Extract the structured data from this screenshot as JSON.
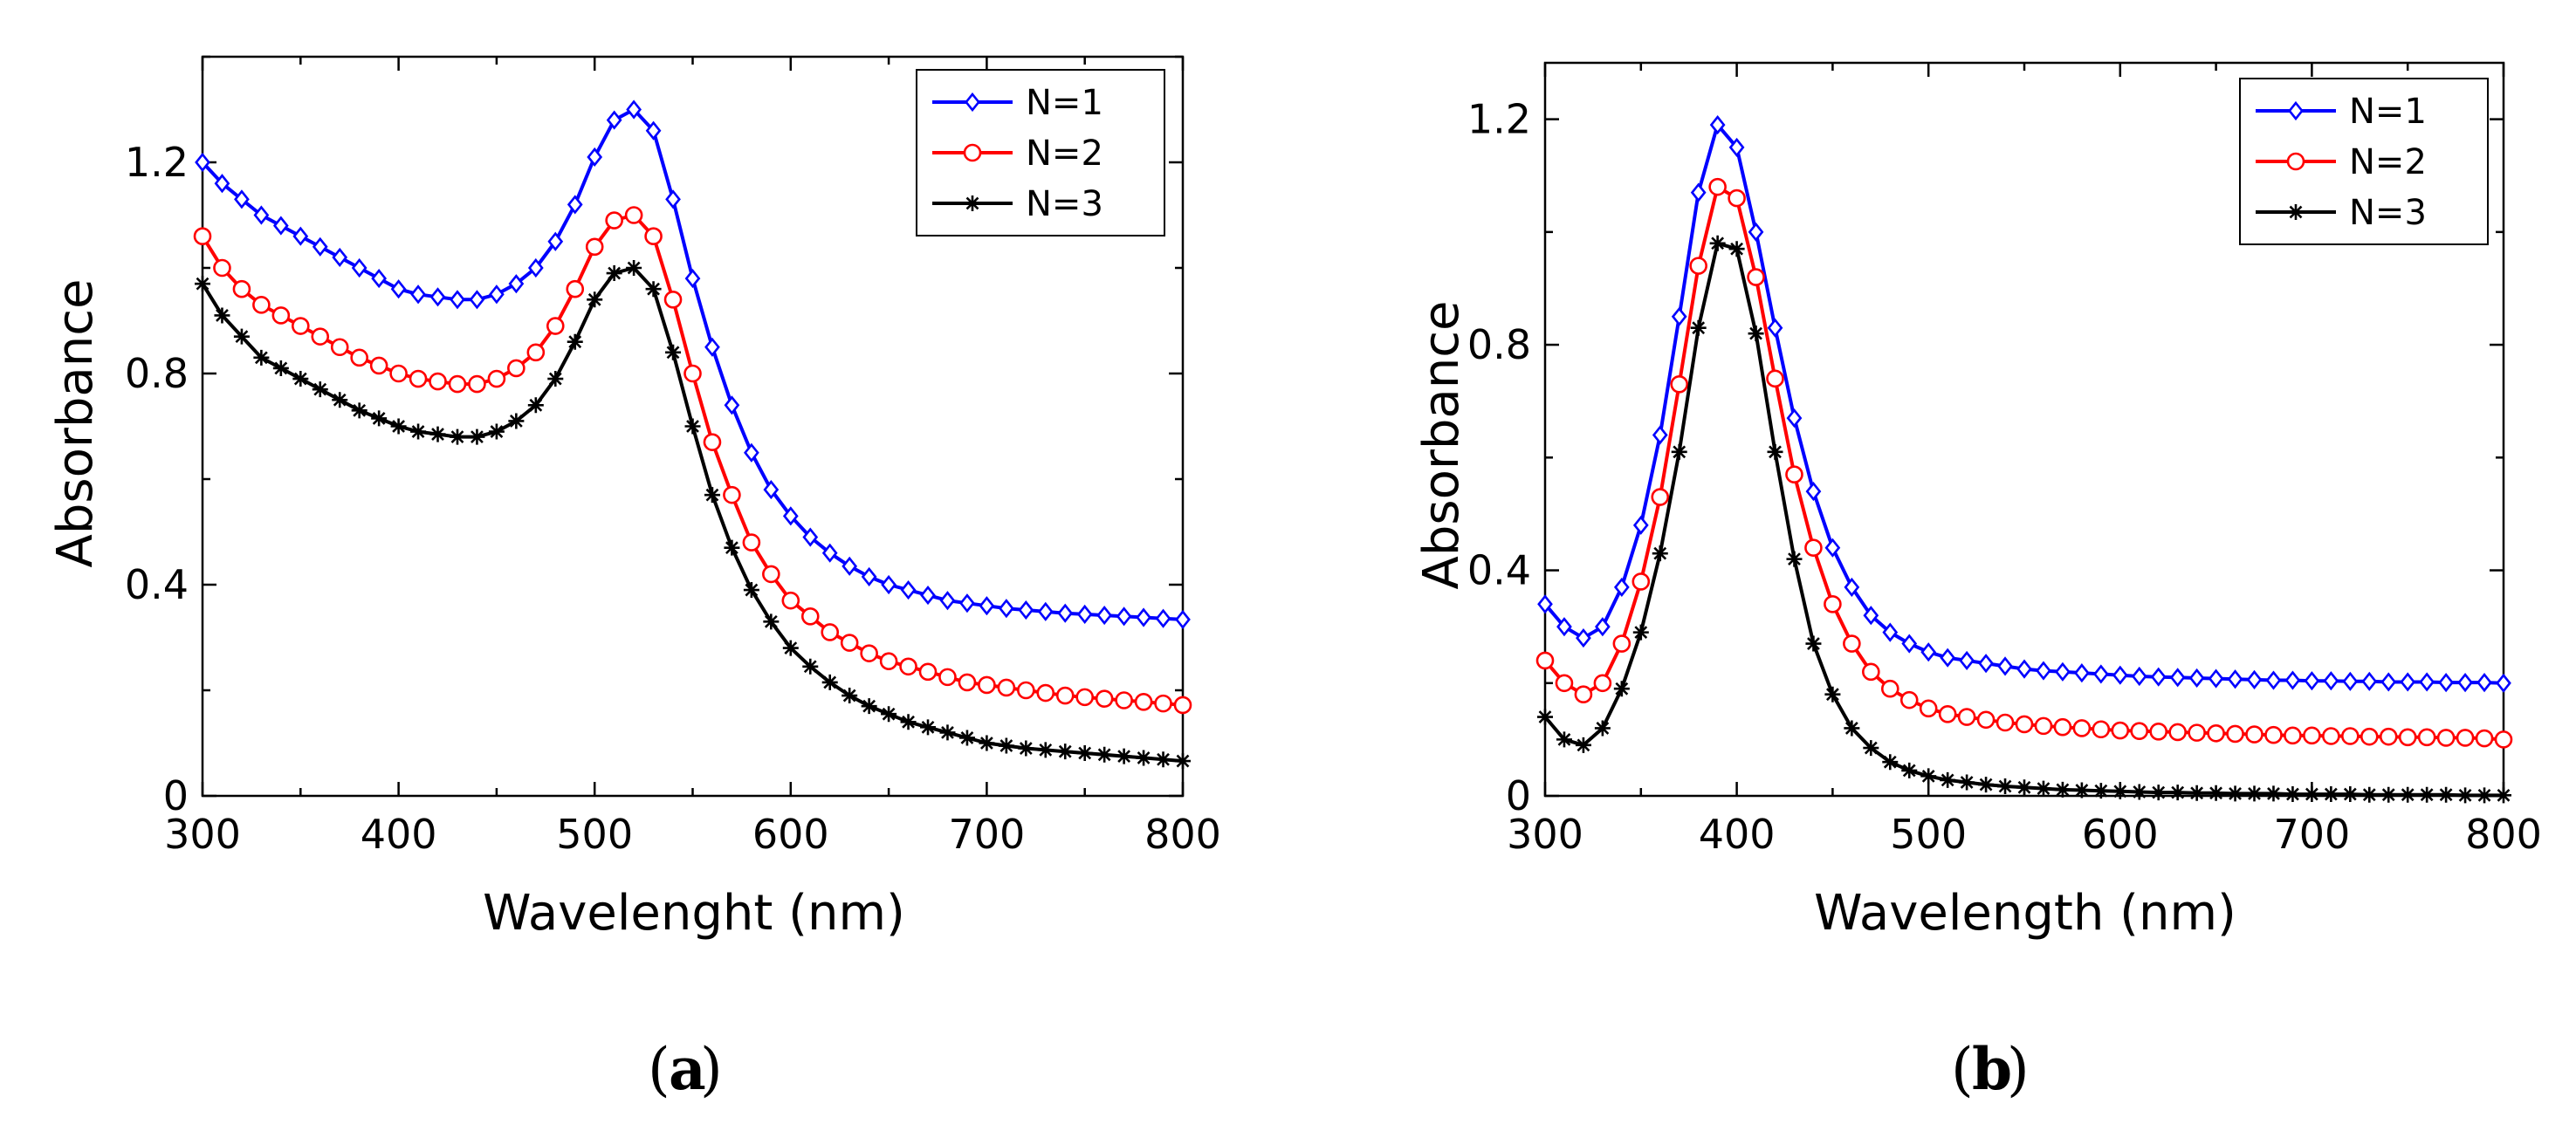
{
  "chart_data": [
    {
      "type": "line",
      "panel_label": "a",
      "xlabel": "Wavelenght (nm)",
      "ylabel": "Absorbance",
      "xlim": [
        300,
        800
      ],
      "ylim": [
        0,
        1.4
      ],
      "xticks": [
        "300",
        "400",
        "500",
        "600",
        "700",
        "800"
      ],
      "yticks": [
        "0",
        "0.4",
        "0.8",
        "1.2"
      ],
      "grid": false,
      "legend_position": "top-right",
      "x": [
        300,
        310,
        320,
        330,
        340,
        350,
        360,
        370,
        380,
        390,
        400,
        410,
        420,
        430,
        440,
        450,
        460,
        470,
        480,
        490,
        500,
        510,
        520,
        530,
        540,
        550,
        560,
        570,
        580,
        590,
        600,
        610,
        620,
        630,
        640,
        650,
        660,
        670,
        680,
        690,
        700,
        710,
        720,
        730,
        740,
        750,
        760,
        770,
        780,
        790,
        800
      ],
      "series": [
        {
          "name": "N=1",
          "color": "#0000ff",
          "marker": "diamond",
          "values": [
            1.2,
            1.16,
            1.13,
            1.1,
            1.08,
            1.06,
            1.04,
            1.02,
            1.0,
            0.98,
            0.96,
            0.95,
            0.945,
            0.94,
            0.94,
            0.95,
            0.97,
            1.0,
            1.05,
            1.12,
            1.21,
            1.28,
            1.3,
            1.26,
            1.13,
            0.98,
            0.85,
            0.74,
            0.65,
            0.58,
            0.53,
            0.49,
            0.46,
            0.435,
            0.415,
            0.4,
            0.39,
            0.38,
            0.37,
            0.365,
            0.36,
            0.355,
            0.352,
            0.349,
            0.346,
            0.344,
            0.342,
            0.34,
            0.338,
            0.336,
            0.334
          ]
        },
        {
          "name": "N=2",
          "color": "#ff0000",
          "marker": "circle",
          "values": [
            1.06,
            1.0,
            0.96,
            0.93,
            0.91,
            0.89,
            0.87,
            0.85,
            0.83,
            0.815,
            0.8,
            0.79,
            0.785,
            0.78,
            0.78,
            0.79,
            0.81,
            0.84,
            0.89,
            0.96,
            1.04,
            1.09,
            1.1,
            1.06,
            0.94,
            0.8,
            0.67,
            0.57,
            0.48,
            0.42,
            0.37,
            0.34,
            0.31,
            0.29,
            0.27,
            0.255,
            0.245,
            0.235,
            0.225,
            0.215,
            0.21,
            0.205,
            0.2,
            0.195,
            0.19,
            0.187,
            0.184,
            0.181,
            0.178,
            0.175,
            0.172
          ]
        },
        {
          "name": "N=3",
          "color": "#000000",
          "marker": "star",
          "values": [
            0.97,
            0.91,
            0.87,
            0.83,
            0.81,
            0.79,
            0.77,
            0.75,
            0.73,
            0.715,
            0.7,
            0.69,
            0.685,
            0.68,
            0.68,
            0.69,
            0.71,
            0.74,
            0.79,
            0.86,
            0.94,
            0.99,
            1.0,
            0.96,
            0.84,
            0.7,
            0.57,
            0.47,
            0.39,
            0.33,
            0.28,
            0.245,
            0.215,
            0.19,
            0.17,
            0.155,
            0.14,
            0.13,
            0.12,
            0.11,
            0.1,
            0.095,
            0.09,
            0.087,
            0.084,
            0.081,
            0.078,
            0.075,
            0.072,
            0.069,
            0.066
          ]
        }
      ]
    },
    {
      "type": "line",
      "panel_label": "b",
      "xlabel": "Wavelength (nm)",
      "ylabel": "Absorbance",
      "xlim": [
        300,
        800
      ],
      "ylim": [
        0,
        1.3
      ],
      "xticks": [
        "300",
        "400",
        "500",
        "600",
        "700",
        "800"
      ],
      "yticks": [
        "0",
        "0.4",
        "0.8",
        "1.2"
      ],
      "grid": false,
      "legend_position": "top-right",
      "x": [
        300,
        310,
        320,
        330,
        340,
        350,
        360,
        370,
        380,
        390,
        400,
        410,
        420,
        430,
        440,
        450,
        460,
        470,
        480,
        490,
        500,
        510,
        520,
        530,
        540,
        550,
        560,
        570,
        580,
        590,
        600,
        610,
        620,
        630,
        640,
        650,
        660,
        670,
        680,
        690,
        700,
        710,
        720,
        730,
        740,
        750,
        760,
        770,
        780,
        790,
        800
      ],
      "series": [
        {
          "name": "N=1",
          "color": "#0000ff",
          "marker": "diamond",
          "values": [
            0.34,
            0.3,
            0.28,
            0.3,
            0.37,
            0.48,
            0.64,
            0.85,
            1.07,
            1.19,
            1.15,
            1.0,
            0.83,
            0.67,
            0.54,
            0.44,
            0.37,
            0.32,
            0.29,
            0.27,
            0.255,
            0.245,
            0.24,
            0.235,
            0.23,
            0.225,
            0.222,
            0.22,
            0.218,
            0.216,
            0.214,
            0.212,
            0.211,
            0.21,
            0.209,
            0.208,
            0.207,
            0.206,
            0.205,
            0.205,
            0.204,
            0.204,
            0.203,
            0.203,
            0.202,
            0.202,
            0.202,
            0.201,
            0.201,
            0.201,
            0.2
          ]
        },
        {
          "name": "N=2",
          "color": "#ff0000",
          "marker": "circle",
          "values": [
            0.24,
            0.2,
            0.18,
            0.2,
            0.27,
            0.38,
            0.53,
            0.73,
            0.94,
            1.08,
            1.06,
            0.92,
            0.74,
            0.57,
            0.44,
            0.34,
            0.27,
            0.22,
            0.19,
            0.17,
            0.155,
            0.145,
            0.14,
            0.135,
            0.13,
            0.127,
            0.124,
            0.122,
            0.12,
            0.118,
            0.116,
            0.115,
            0.114,
            0.113,
            0.112,
            0.111,
            0.11,
            0.109,
            0.108,
            0.107,
            0.107,
            0.106,
            0.106,
            0.105,
            0.105,
            0.104,
            0.104,
            0.103,
            0.103,
            0.102,
            0.1
          ]
        },
        {
          "name": "N=3",
          "color": "#000000",
          "marker": "star",
          "values": [
            0.14,
            0.1,
            0.09,
            0.12,
            0.19,
            0.29,
            0.43,
            0.61,
            0.83,
            0.98,
            0.97,
            0.82,
            0.61,
            0.42,
            0.27,
            0.18,
            0.12,
            0.085,
            0.06,
            0.045,
            0.035,
            0.028,
            0.024,
            0.02,
            0.017,
            0.015,
            0.013,
            0.011,
            0.01,
            0.009,
            0.008,
            0.007,
            0.006,
            0.006,
            0.005,
            0.005,
            0.004,
            0.004,
            0.004,
            0.003,
            0.003,
            0.003,
            0.003,
            0.002,
            0.002,
            0.002,
            0.002,
            0.002,
            0.001,
            0.001,
            0.001
          ]
        }
      ]
    }
  ]
}
